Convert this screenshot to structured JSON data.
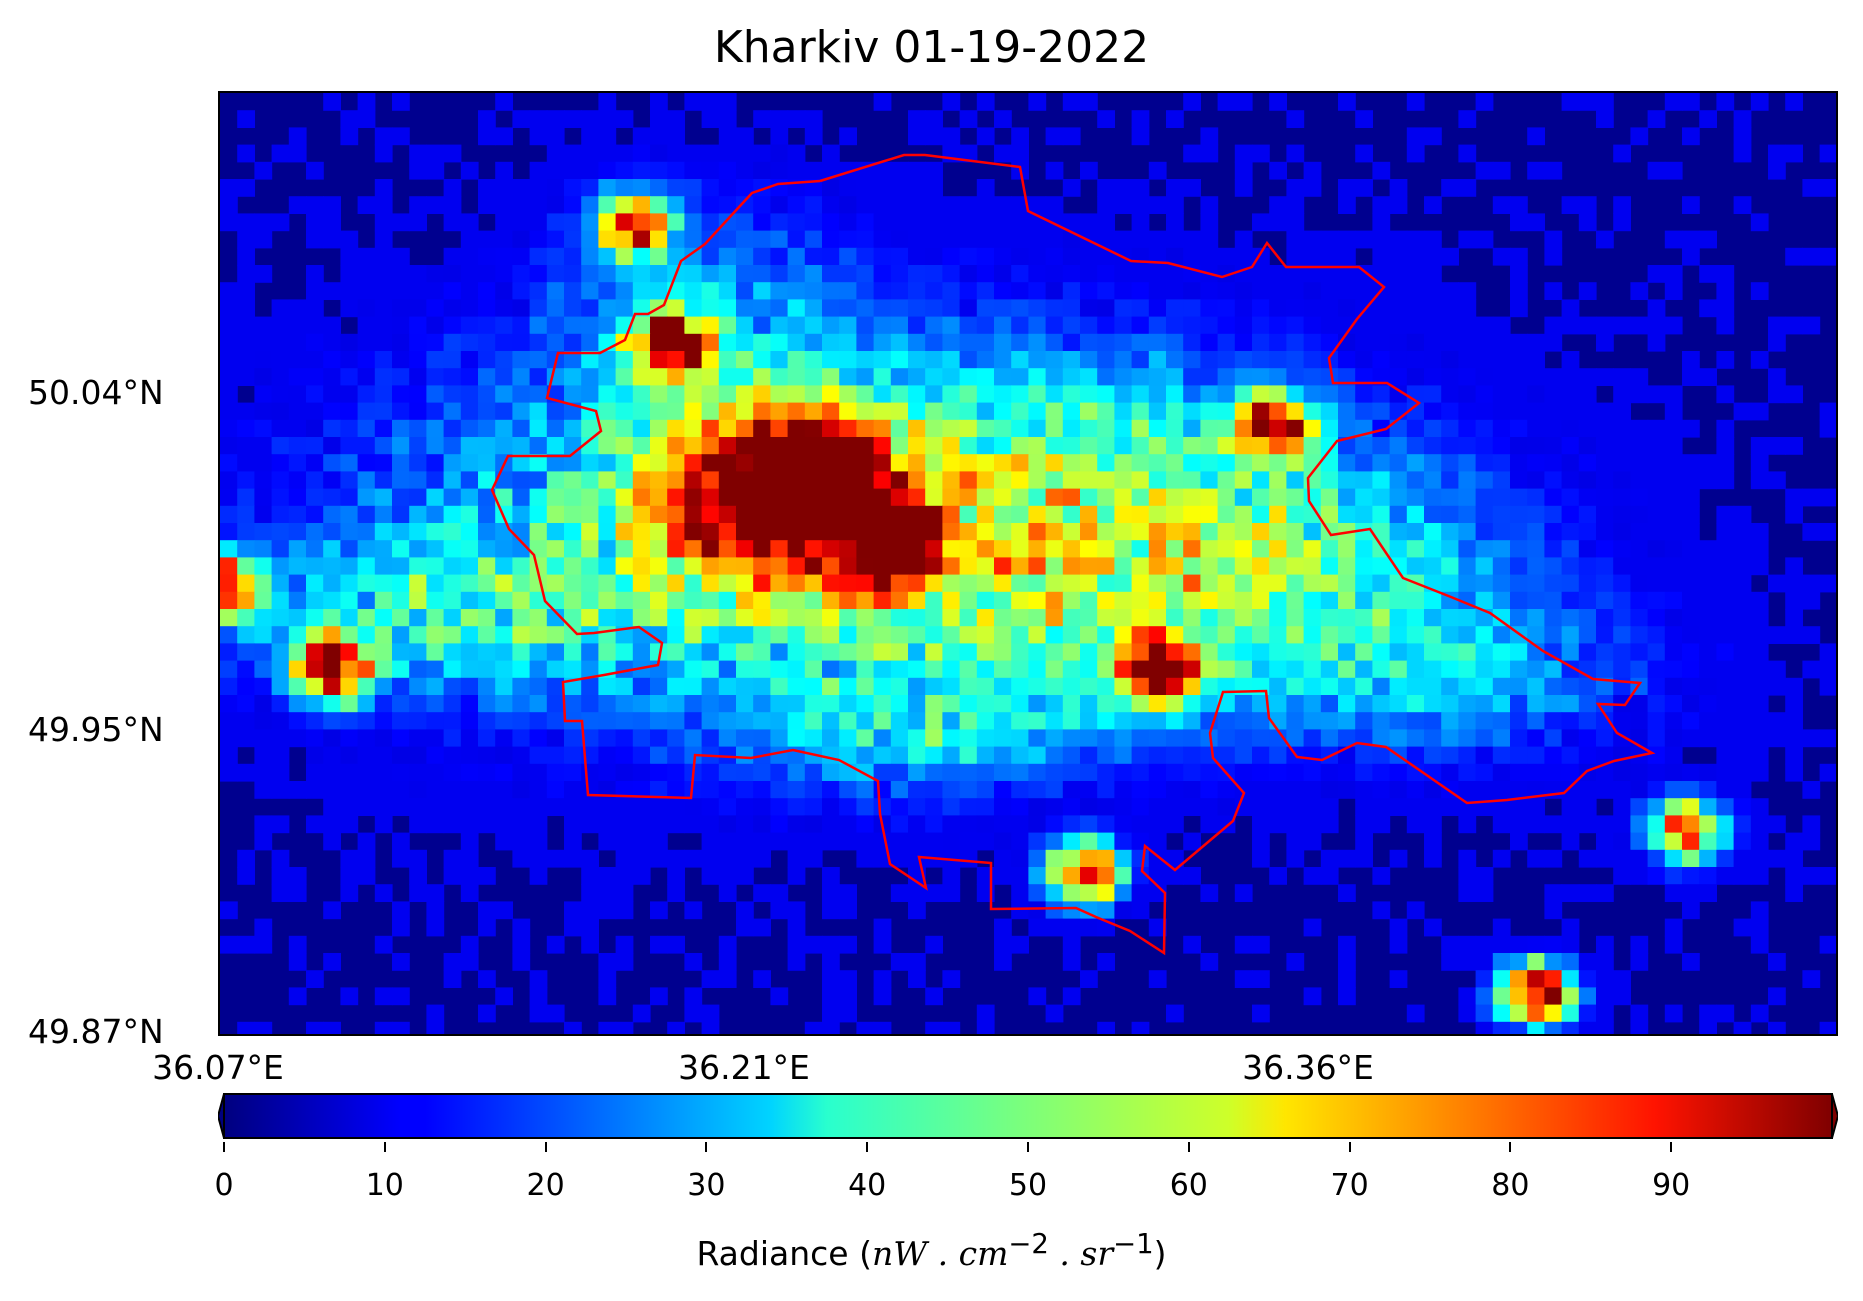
{
  "title": "Kharkiv 01-19-2022",
  "lat_ticks": [
    "50.04°N",
    "49.95°N",
    "49.87°N"
  ],
  "lon_ticks": [
    "36.07°E",
    "36.21°E",
    "36.36°E"
  ],
  "colorbar": {
    "colormap": "jet",
    "min": 0,
    "max": 100,
    "extend": "both",
    "ticks": [
      "0",
      "10",
      "20",
      "30",
      "40",
      "50",
      "60",
      "70",
      "80",
      "90"
    ],
    "label_prefix": "Radiance (",
    "label_unit_1": "nW . cm",
    "label_exp_1": "−2",
    "label_unit_2": " . sr",
    "label_exp_2": "−1",
    "label_suffix": ")"
  },
  "colors": {
    "boundary": "#ff0000",
    "background_low": "#00008f"
  },
  "chart_data": {
    "type": "heatmap",
    "title": "Kharkiv 01-19-2022",
    "xlabel": "",
    "ylabel": "",
    "x_ticks": [
      "36.07°E",
      "36.21°E",
      "36.36°E"
    ],
    "y_ticks": [
      "50.04°N",
      "49.95°N",
      "49.87°N"
    ],
    "value_range": [
      0,
      100
    ],
    "colorbar_label": "Radiance (nW . cm^-2 . sr^-1)",
    "hotspots": [
      {
        "lon": 36.23,
        "lat": 50.01,
        "radiance": 95
      },
      {
        "lon": 36.25,
        "lat": 49.99,
        "radiance": 95
      },
      {
        "lon": 36.1,
        "lat": 49.96,
        "radiance": 95
      },
      {
        "lon": 36.07,
        "lat": 49.98,
        "radiance": 90
      },
      {
        "lon": 36.3,
        "lat": 49.91,
        "radiance": 90
      },
      {
        "lon": 36.32,
        "lat": 49.96,
        "radiance": 85
      },
      {
        "lon": 36.42,
        "lat": 49.88,
        "radiance": 95
      },
      {
        "lon": 36.19,
        "lat": 50.04,
        "radiance": 90
      },
      {
        "lon": 36.35,
        "lat": 50.02,
        "radiance": 80
      },
      {
        "lon": 36.46,
        "lat": 49.92,
        "radiance": 80
      },
      {
        "lon": 36.18,
        "lat": 50.07,
        "radiance": 80
      }
    ]
  }
}
